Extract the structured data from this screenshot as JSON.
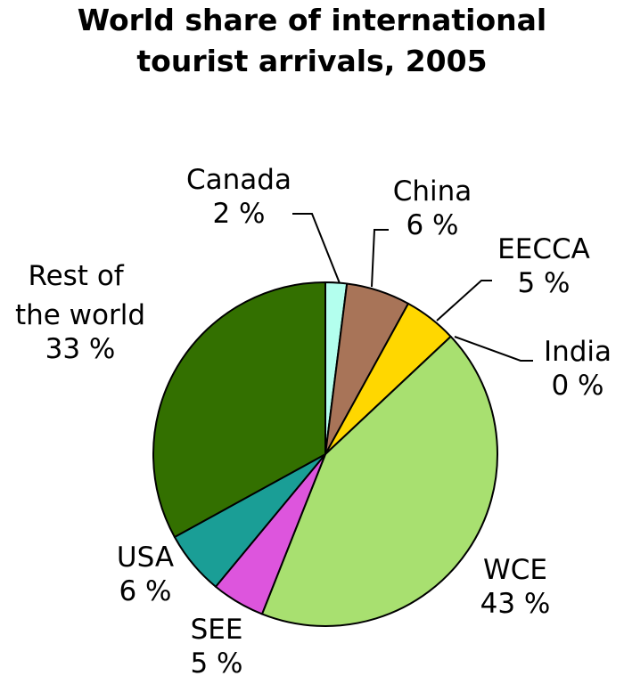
{
  "chart_data": {
    "type": "pie",
    "title": "World share of international tourist arrivals, 2005",
    "categories": [
      "Canada",
      "China",
      "EECCA",
      "India",
      "WCE",
      "SEE",
      "USA",
      "Rest of the world"
    ],
    "values": [
      2,
      6,
      5,
      0,
      43,
      5,
      6,
      33
    ],
    "value_labels": [
      "2 %",
      "6 %",
      "5 %",
      "0 %",
      "43 %",
      "5 %",
      "6 %",
      "33 %"
    ],
    "colors": [
      "#b3ffee",
      "#a87458",
      "#ffd700",
      "#444444",
      "#a8e070",
      "#dd55dd",
      "#1a9e96",
      "#337000"
    ]
  }
}
